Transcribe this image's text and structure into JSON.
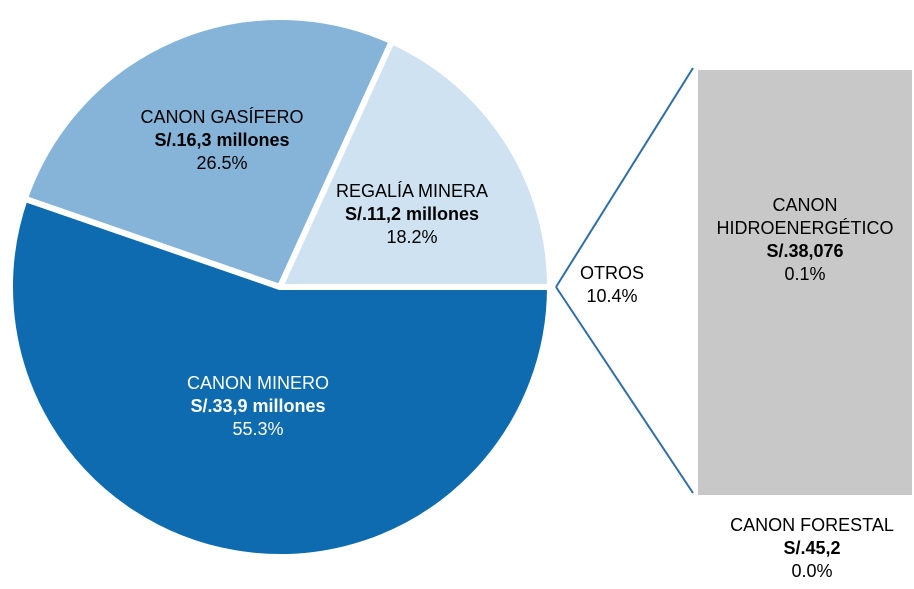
{
  "chart_data": {
    "type": "pie",
    "categories": [
      "CANON MINERO",
      "CANON GASÍFERO",
      "REGALÍA MINERA"
    ],
    "amounts": [
      "S/.33,9 millones",
      "S/.16,3 millones",
      "S/.11,2 millones"
    ],
    "values": [
      55.3,
      26.5,
      18.2
    ],
    "value_labels": [
      "55.3%",
      "26.5%",
      "18.2%"
    ],
    "colors": [
      "#0e6bb0",
      "#85b4d8",
      "#cfe2f1"
    ],
    "others": {
      "name": "OTROS",
      "value": 10.4,
      "value_label": "10.4%"
    },
    "bar": {
      "categories": [
        "CANON HIDROENERGÉTICO",
        "CANON FORESTAL"
      ],
      "amounts": [
        "S/.38,076",
        "S/.45,2"
      ],
      "values": [
        0.1,
        0.0
      ],
      "value_labels": [
        "0.1%",
        "0.0%"
      ],
      "colors": [
        "#c8c8c8",
        "#000000"
      ]
    }
  }
}
